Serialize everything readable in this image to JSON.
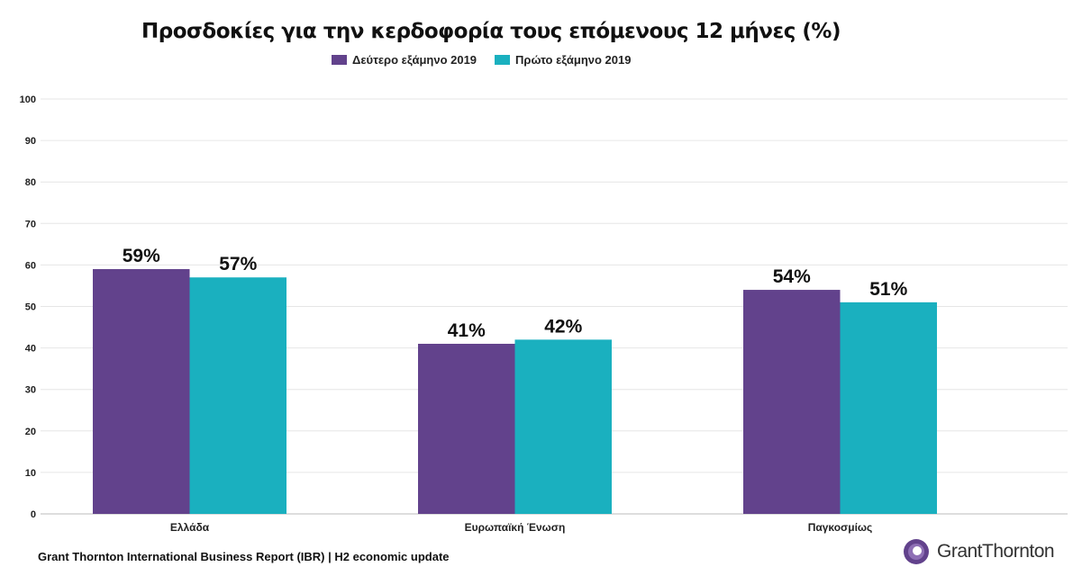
{
  "chart_data": {
    "type": "bar",
    "title": "Προσδοκίες για την κερδοφορία τους επόμενους 12 μήνες (%)",
    "categories": [
      "Ελλάδα",
      "Ευρωπαϊκή Ένωση",
      "Παγκοσμίως"
    ],
    "series": [
      {
        "name": "Δεύτερο εξάμηνο 2019",
        "values": [
          59,
          41,
          54
        ],
        "labels": [
          "59%",
          "41%",
          "54%"
        ],
        "color": "#62428c"
      },
      {
        "name": "Πρώτο εξάμηνο 2019",
        "values": [
          57,
          42,
          51
        ],
        "labels": [
          "57%",
          "42%",
          "51%"
        ],
        "color": "#1ab0bf"
      }
    ],
    "ylim": [
      0,
      100
    ],
    "yticks": [
      0,
      10,
      20,
      30,
      40,
      50,
      60,
      70,
      80,
      90,
      100
    ],
    "grid": true,
    "legend": "top"
  },
  "footer": "Grant Thornton International Business Report (IBR) | H2 economic update",
  "logo": {
    "text": "GrantThornton",
    "color": "#62428c"
  }
}
